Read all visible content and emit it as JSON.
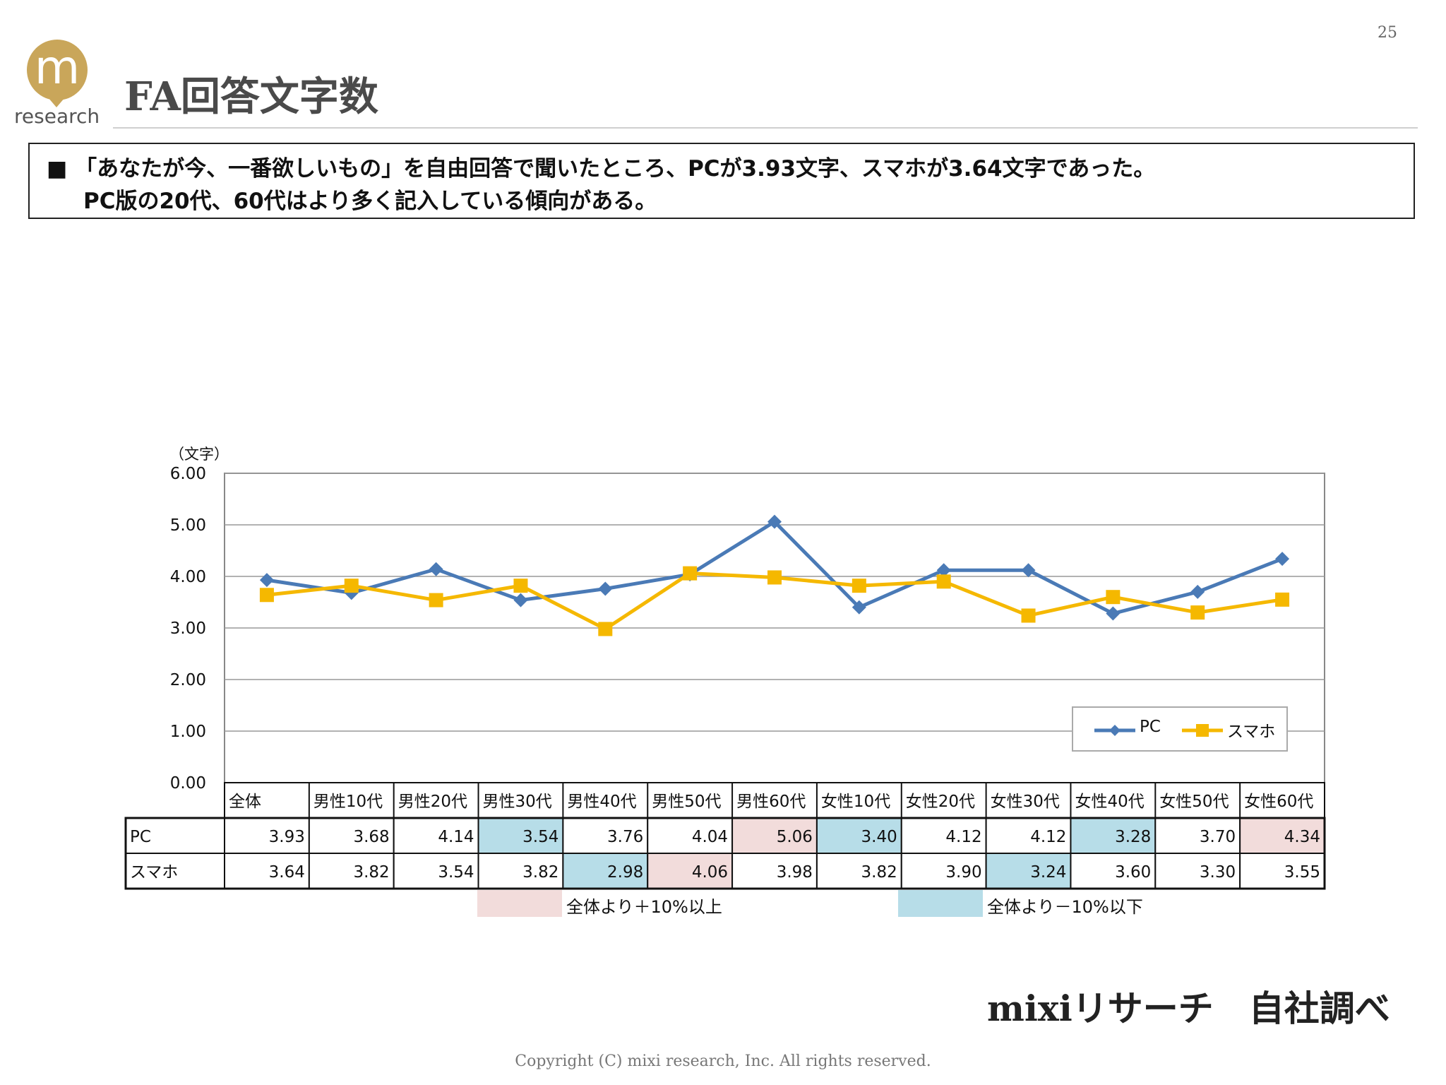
{
  "page_number": "25",
  "logo": {
    "mark": "m",
    "text": "research"
  },
  "title": "FA回答文字数",
  "summary": {
    "bullet": "■",
    "line1": "「あなたが今、一番欲しいもの」を自由回答で聞いたところ、PCが3.93文字、スマホが3.64文字であった。",
    "line2": "PC版の20代、60代はより多く記入している傾向がある。"
  },
  "chart_data": {
    "type": "line",
    "ylabel": "（文字）",
    "ylim": [
      0,
      6
    ],
    "yticks": [
      "6.00",
      "5.00",
      "4.00",
      "3.00",
      "2.00",
      "1.00",
      "0.00"
    ],
    "grid": true,
    "legend_position": "lower-right",
    "categories": [
      "全体",
      "男性10代",
      "男性20代",
      "男性30代",
      "男性40代",
      "男性50代",
      "男性60代",
      "女性10代",
      "女性20代",
      "女性30代",
      "女性40代",
      "女性50代",
      "女性60代"
    ],
    "series": [
      {
        "name": "PC",
        "color": "#4a7ab6",
        "marker": "diamond",
        "values": [
          3.93,
          3.68,
          4.14,
          3.54,
          3.76,
          4.04,
          5.06,
          3.4,
          4.12,
          4.12,
          3.28,
          3.7,
          4.34
        ]
      },
      {
        "name": "スマホ",
        "color": "#f5b800",
        "marker": "square",
        "values": [
          3.64,
          3.82,
          3.54,
          3.82,
          2.98,
          4.06,
          3.98,
          3.82,
          3.9,
          3.24,
          3.6,
          3.3,
          3.55
        ]
      }
    ],
    "table": {
      "rows": [
        {
          "label": "PC",
          "values": [
            "3.93",
            "3.68",
            "4.14",
            "3.54",
            "3.76",
            "4.04",
            "5.06",
            "3.40",
            "4.12",
            "4.12",
            "3.28",
            "3.70",
            "4.34"
          ],
          "highlight": [
            "",
            "",
            "",
            "low",
            "",
            "",
            "high",
            "low",
            "",
            "",
            "low",
            "",
            "high"
          ]
        },
        {
          "label": "スマホ",
          "values": [
            "3.64",
            "3.82",
            "3.54",
            "3.82",
            "2.98",
            "4.06",
            "3.98",
            "3.82",
            "3.90",
            "3.24",
            "3.60",
            "3.30",
            "3.55"
          ],
          "highlight": [
            "",
            "",
            "",
            "",
            "low",
            "high",
            "",
            "",
            "",
            "low",
            "",
            "",
            ""
          ]
        }
      ]
    },
    "highlight_key": {
      "high": {
        "label": "全体より＋10%以上",
        "color": "#f2dcdb"
      },
      "low": {
        "label": "全体より－10%以下",
        "color": "#b7dde8"
      }
    }
  },
  "footer": {
    "source": "mixiリサーチ　自社調べ",
    "copyright": "Copyright (C) mixi research, Inc. All rights reserved."
  }
}
